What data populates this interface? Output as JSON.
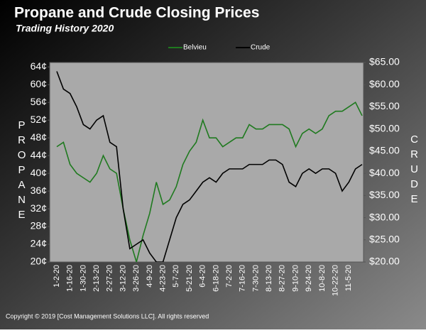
{
  "chart_data": {
    "type": "line",
    "title": "Propane  and Crude Closing Prices",
    "subtitle": "Trading History 2020",
    "ylabel": "PROPANE",
    "y2label": "CRUDE",
    "footer": "Copyright © 2019 [Cost Management Solutions LLC].  All rights reserved",
    "legend": "top",
    "categories": [
      "1-2-20",
      null,
      "1-16-20",
      null,
      "1-30-20",
      null,
      "2-13-20",
      null,
      "2-27-20",
      null,
      "3-12-20",
      null,
      "3-26-20",
      null,
      "4-9-20",
      null,
      "4-23-20",
      null,
      "5-7-20",
      null,
      "5-21-20",
      null,
      "6-4-20",
      null,
      "6-18-20",
      null,
      "7-2-20",
      null,
      "7-16-20",
      null,
      "7-30-20",
      null,
      "8-13-20",
      null,
      "8-27-20",
      null,
      "9-10-20",
      null,
      "9-24-20",
      null,
      "10-8-20",
      null,
      "10-22-20",
      null,
      "11-5-20",
      null,
      null
    ],
    "series": [
      {
        "name": "Belvieu",
        "color": "#1f7a1f",
        "values": [
          46,
          47,
          42,
          40,
          39,
          38,
          40,
          44,
          41,
          40,
          32,
          25,
          20,
          26,
          31,
          38,
          33,
          34,
          37,
          42,
          45,
          47,
          52,
          48,
          48,
          46,
          47,
          48,
          48,
          51,
          50,
          50,
          51,
          51,
          51,
          50,
          46,
          49,
          50,
          49,
          50,
          53,
          54,
          54,
          55,
          56,
          53
        ]
      },
      {
        "name": "Crude",
        "color": "#000000",
        "axis": "y2",
        "values": [
          63,
          59,
          58,
          55,
          51,
          50,
          52,
          53,
          47,
          46,
          32,
          23,
          24,
          25,
          22,
          20,
          20,
          25,
          30,
          33,
          34,
          36,
          38,
          39,
          38,
          40,
          41,
          41,
          41,
          42,
          42,
          42,
          43,
          43,
          42,
          38,
          37,
          40,
          41,
          40,
          41,
          41,
          40,
          36,
          38,
          41,
          42
        ]
      }
    ],
    "ylim": [
      20,
      65
    ],
    "yticks": [
      {
        "value": 20,
        "label": "20¢"
      },
      {
        "value": 24,
        "label": "24¢"
      },
      {
        "value": 28,
        "label": "28¢"
      },
      {
        "value": 32,
        "label": "32¢"
      },
      {
        "value": 36,
        "label": "36¢"
      },
      {
        "value": 40,
        "label": "40¢"
      },
      {
        "value": 44,
        "label": "44¢"
      },
      {
        "value": 48,
        "label": "48¢"
      },
      {
        "value": 52,
        "label": "52¢"
      },
      {
        "value": 56,
        "label": "56¢"
      },
      {
        "value": 60,
        "label": "60¢"
      },
      {
        "value": 64,
        "label": "64¢"
      }
    ],
    "y2lim": [
      20,
      65
    ],
    "y2ticks": [
      {
        "value": 20,
        "label": "$20.00"
      },
      {
        "value": 25,
        "label": "$25.00"
      },
      {
        "value": 30,
        "label": "$30.00"
      },
      {
        "value": 35,
        "label": "$35.00"
      },
      {
        "value": 40,
        "label": "$40.00"
      },
      {
        "value": 45,
        "label": "$45.00"
      },
      {
        "value": 50,
        "label": "$50.00"
      },
      {
        "value": 55,
        "label": "$55.00"
      },
      {
        "value": 60,
        "label": "$60.00"
      },
      {
        "value": 65,
        "label": "$65.00"
      }
    ],
    "grid": false
  }
}
